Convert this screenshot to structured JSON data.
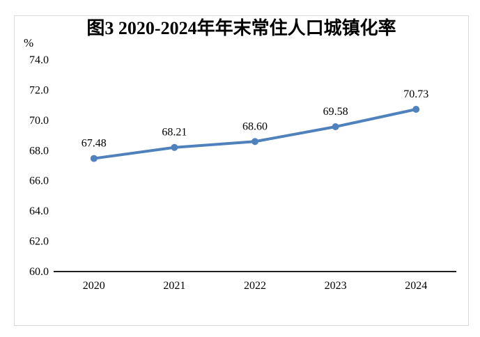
{
  "chart_data": {
    "type": "line",
    "title": "图3 2020-2024年年末常住人口城镇化率",
    "categories": [
      "2020",
      "2021",
      "2022",
      "2023",
      "2024"
    ],
    "values": [
      67.48,
      68.21,
      68.6,
      69.58,
      70.73
    ],
    "data_labels": [
      "67.48",
      "68.21",
      "68.60",
      "69.58",
      "70.73"
    ],
    "xlabel": "",
    "ylabel": "%",
    "ylim": [
      60.0,
      74.0
    ],
    "ytick_step": 2.0,
    "ytick_labels": [
      "60.0",
      "62.0",
      "64.0",
      "66.0",
      "68.0",
      "70.0",
      "72.0",
      "74.0"
    ],
    "grid": false,
    "legend_position": "none",
    "marker": "circle",
    "line_color": "#4F81BD",
    "axis_color": "#000000",
    "frame_border_color": "#d9d9d9"
  }
}
